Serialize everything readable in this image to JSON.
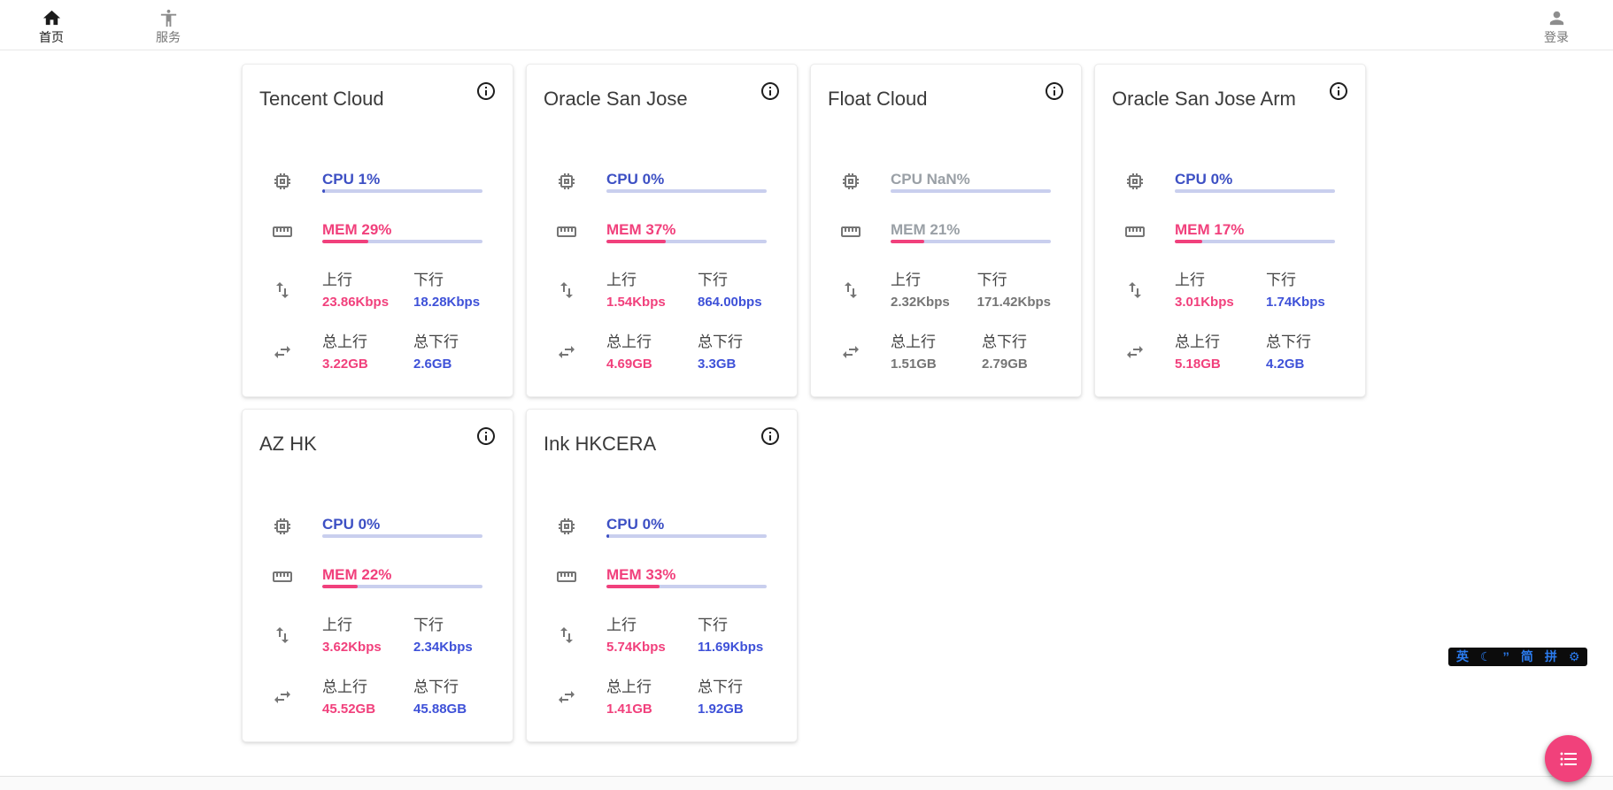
{
  "nav": {
    "home": {
      "label": "首页"
    },
    "services": {
      "label": "服务"
    },
    "login": {
      "label": "登录"
    }
  },
  "labels": {
    "up": "上行",
    "down": "下行",
    "total_up": "总上行",
    "total_down": "总下行"
  },
  "colors": {
    "cpu_accent": "#3d50c4",
    "mem_accent": "#f1407c",
    "value_up": "#f1407c",
    "value_down": "#3e51d8",
    "bar_track": "#c9cfee",
    "fab": "#f1417b"
  },
  "servers": [
    {
      "name": "Tencent Cloud",
      "cpu": "CPU 1%",
      "cpu_pct": 1,
      "mem": "MEM 29%",
      "mem_pct": 29,
      "up_speed": "23.86Kbps",
      "down_speed": "18.28Kbps",
      "total_up": "3.22GB",
      "total_down": "2.6GB",
      "offline": false
    },
    {
      "name": "Oracle San Jose",
      "cpu": "CPU 0%",
      "cpu_pct": 0,
      "mem": "MEM 37%",
      "mem_pct": 37,
      "up_speed": "1.54Kbps",
      "down_speed": "864.00bps",
      "total_up": "4.69GB",
      "total_down": "3.3GB",
      "offline": false
    },
    {
      "name": "Float Cloud",
      "cpu": "CPU NaN%",
      "cpu_pct": 0,
      "mem": "MEM 21%",
      "mem_pct": 21,
      "up_speed": "2.32Kbps",
      "down_speed": "171.42Kbps",
      "total_up": "1.51GB",
      "total_down": "2.79GB",
      "offline": true
    },
    {
      "name": "Oracle San Jose Arm",
      "cpu": "CPU 0%",
      "cpu_pct": 0,
      "mem": "MEM 17%",
      "mem_pct": 17,
      "up_speed": "3.01Kbps",
      "down_speed": "1.74Kbps",
      "total_up": "5.18GB",
      "total_down": "4.2GB",
      "offline": false
    },
    {
      "name": "AZ HK",
      "cpu": "CPU 0%",
      "cpu_pct": 0,
      "mem": "MEM 22%",
      "mem_pct": 22,
      "up_speed": "3.62Kbps",
      "down_speed": "2.34Kbps",
      "total_up": "45.52GB",
      "total_down": "45.88GB",
      "offline": false
    },
    {
      "name": "Ink HKCERA",
      "cpu": "CPU 0%",
      "cpu_pct": 0.4,
      "mem": "MEM 33%",
      "mem_pct": 33,
      "up_speed": "5.74Kbps",
      "down_speed": "11.69Kbps",
      "total_up": "1.41GB",
      "total_down": "1.92GB",
      "offline": false
    }
  ],
  "ime": {
    "items": [
      "英",
      "☾",
      "’’",
      "简",
      "拼",
      "⚙"
    ]
  }
}
